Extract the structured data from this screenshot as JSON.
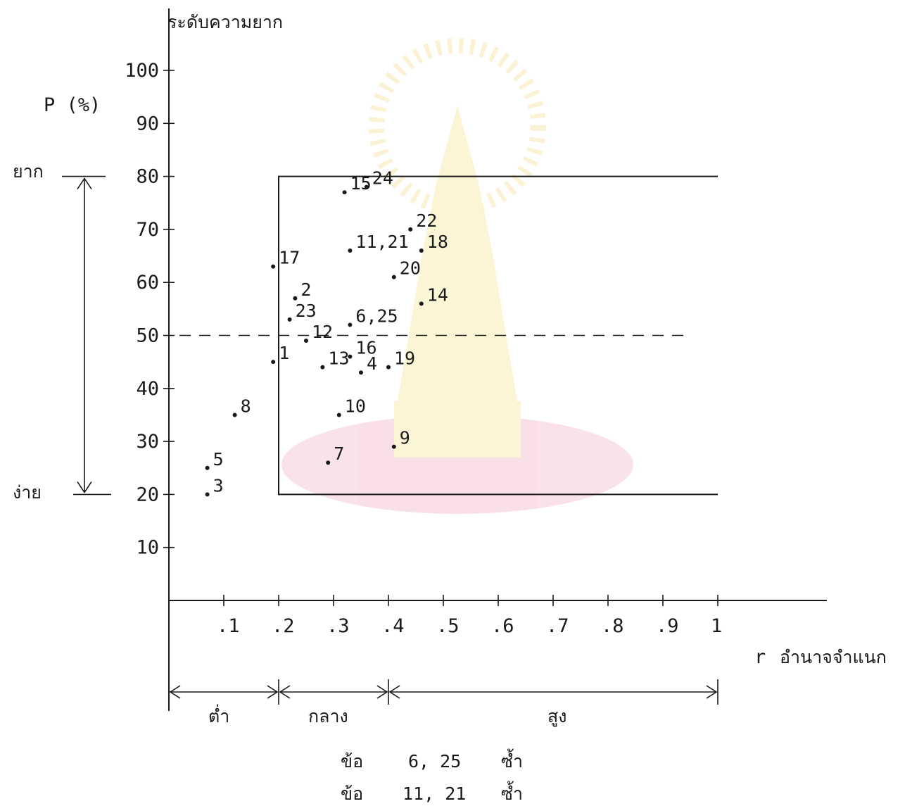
{
  "chart_data": {
    "type": "scatter",
    "y_title": "ระดับความยาก",
    "y_label": "P (%)",
    "x_label": "r",
    "x_title": "อำนาจจำแนก",
    "xlim": [
      0,
      1
    ],
    "ylim": [
      0,
      100
    ],
    "x_ticks": [
      {
        "v": 0.1,
        "label": ".1"
      },
      {
        "v": 0.2,
        "label": ".2"
      },
      {
        "v": 0.3,
        "label": ".3"
      },
      {
        "v": 0.4,
        "label": ".4"
      },
      {
        "v": 0.5,
        "label": ".5"
      },
      {
        "v": 0.6,
        "label": ".6"
      },
      {
        "v": 0.7,
        "label": ".7"
      },
      {
        "v": 0.8,
        "label": ".8"
      },
      {
        "v": 0.9,
        "label": ".9"
      },
      {
        "v": 1.0,
        "label": "1"
      }
    ],
    "y_ticks": [
      {
        "v": 10,
        "label": "10"
      },
      {
        "v": 20,
        "label": "20"
      },
      {
        "v": 30,
        "label": "30"
      },
      {
        "v": 40,
        "label": "40"
      },
      {
        "v": 50,
        "label": "50"
      },
      {
        "v": 60,
        "label": "60"
      },
      {
        "v": 70,
        "label": "70"
      },
      {
        "v": 80,
        "label": "80"
      },
      {
        "v": 90,
        "label": "90"
      },
      {
        "v": 100,
        "label": "100"
      }
    ],
    "y_range_labels": {
      "hard": "ยาก",
      "easy": "ง่าย",
      "hard_value": 80,
      "easy_value": 20
    },
    "x_ranges": [
      {
        "label": "ต่ำ",
        "from": 0,
        "to": 0.2
      },
      {
        "label": "กลาง",
        "from": 0.2,
        "to": 0.4
      },
      {
        "label": "สูง",
        "from": 0.4,
        "to": 1.0
      }
    ],
    "region": {
      "x_min": 0.2,
      "x_max": 1.0,
      "y_min": 20,
      "y_max": 80
    },
    "reference_line_y": 50,
    "points": [
      {
        "label": "1",
        "x": 0.19,
        "y": 45
      },
      {
        "label": "2",
        "x": 0.23,
        "y": 57
      },
      {
        "label": "3",
        "x": 0.07,
        "y": 20
      },
      {
        "label": "4",
        "x": 0.35,
        "y": 43
      },
      {
        "label": "5",
        "x": 0.07,
        "y": 25
      },
      {
        "label": "6,25",
        "x": 0.33,
        "y": 52
      },
      {
        "label": "7",
        "x": 0.29,
        "y": 26
      },
      {
        "label": "8",
        "x": 0.12,
        "y": 35
      },
      {
        "label": "9",
        "x": 0.41,
        "y": 29
      },
      {
        "label": "10",
        "x": 0.31,
        "y": 35
      },
      {
        "label": "11,21",
        "x": 0.33,
        "y": 66
      },
      {
        "label": "12",
        "x": 0.25,
        "y": 49
      },
      {
        "label": "13",
        "x": 0.28,
        "y": 44
      },
      {
        "label": "14",
        "x": 0.46,
        "y": 56
      },
      {
        "label": "15",
        "x": 0.32,
        "y": 77
      },
      {
        "label": "16",
        "x": 0.33,
        "y": 46
      },
      {
        "label": "17",
        "x": 0.19,
        "y": 63
      },
      {
        "label": "18",
        "x": 0.46,
        "y": 66
      },
      {
        "label": "19",
        "x": 0.4,
        "y": 44
      },
      {
        "label": "20",
        "x": 0.41,
        "y": 61
      },
      {
        "label": "22",
        "x": 0.44,
        "y": 70
      },
      {
        "label": "23",
        "x": 0.22,
        "y": 53
      },
      {
        "label": "24",
        "x": 0.36,
        "y": 78
      }
    ],
    "notes": [
      {
        "prefix": "ข้อ",
        "items": "6, 25",
        "suffix": "ซ้ำ"
      },
      {
        "prefix": "ข้อ",
        "items": "11, 21",
        "suffix": "ซ้ำ"
      }
    ]
  }
}
